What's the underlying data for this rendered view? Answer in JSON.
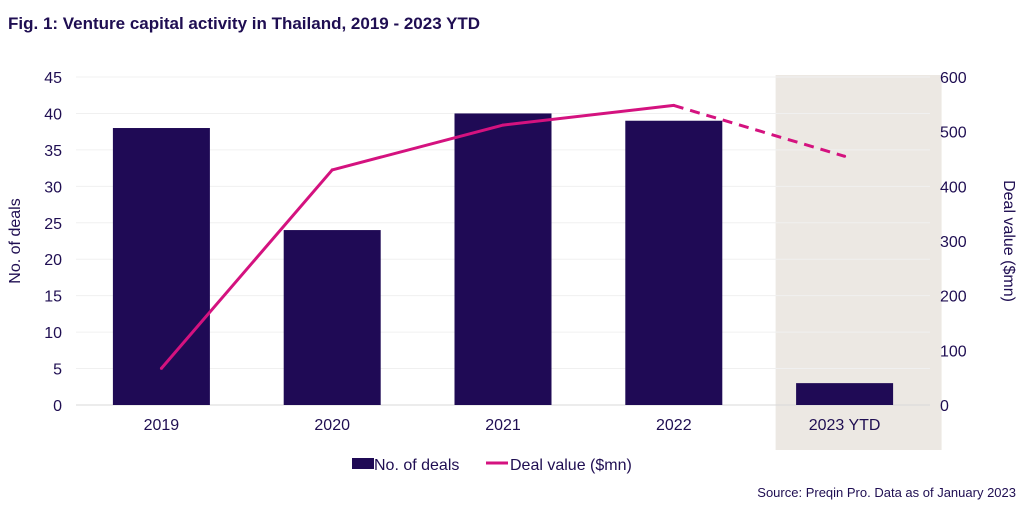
{
  "title": "Fig. 1: Venture capital activity in Thailand, 2019 - 2023 YTD",
  "source": "Source: Preqin Pro. Data as of January 2023",
  "colors": {
    "bar": "#1f0a55",
    "line": "#d4127f",
    "highlight": "#ece8e3",
    "text": "#1f0e52"
  },
  "chart_data": {
    "type": "bar",
    "categories": [
      "2019",
      "2020",
      "2021",
      "2022",
      "2023 YTD"
    ],
    "highlighted_category": "2023 YTD",
    "series": [
      {
        "name": "No. of deals",
        "type": "bar",
        "axis": "left",
        "values": [
          38,
          24,
          40,
          39,
          3
        ]
      },
      {
        "name": "Deal value ($mn)",
        "type": "line",
        "axis": "right",
        "values": [
          67,
          430,
          512,
          548,
          455
        ],
        "dashed_from_index": 3
      }
    ],
    "ylabel": "No. of deals",
    "y2label": "Deal value ($mn)",
    "ylim": [
      0,
      45
    ],
    "y2lim": [
      0,
      600
    ],
    "yticks": [
      "0",
      "5",
      "10",
      "15",
      "20",
      "25",
      "30",
      "35",
      "40",
      "45"
    ],
    "y2ticks": [
      "0",
      "100",
      "200",
      "300",
      "400",
      "500",
      "600"
    ],
    "legend": [
      "No. of deals",
      "Deal value ($mn)"
    ],
    "legend_position": "bottom-center"
  }
}
